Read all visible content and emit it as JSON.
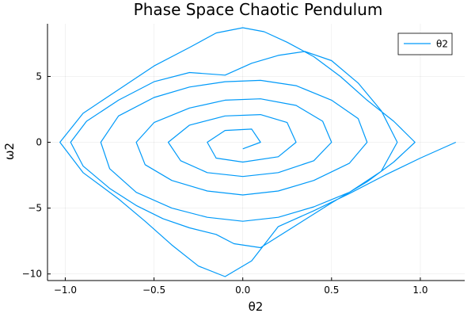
{
  "chart_data": {
    "type": "line",
    "title": "Phase Space Chaotic Pendulum",
    "xlabel": "θ2",
    "ylabel": "ω2",
    "xlim": [
      -1.1,
      1.25
    ],
    "ylim": [
      -10.5,
      9.0
    ],
    "xticks": [
      -1.0,
      -0.5,
      0.0,
      0.5,
      1.0
    ],
    "xtick_labels": [
      "−1.0",
      "−0.5",
      "0.0",
      "0.5",
      "1.0"
    ],
    "yticks": [
      -10,
      -5,
      0,
      5
    ],
    "ytick_labels": [
      "−10",
      "−5",
      "0",
      "5"
    ],
    "grid": true,
    "legend_position": "top-right",
    "series": [
      {
        "name": "θ2",
        "color": "#009af9",
        "x": [
          1.2,
          1.0,
          0.8,
          0.6,
          0.4,
          0.2,
          0.05,
          -0.1,
          -0.25,
          -0.4,
          -0.55,
          -0.7,
          -0.9,
          -1.03,
          -0.9,
          -0.7,
          -0.5,
          -0.3,
          -0.15,
          0.0,
          0.12,
          0.25,
          0.4,
          0.55,
          0.7,
          0.85,
          0.97,
          0.85,
          0.7,
          0.5,
          0.3,
          0.1,
          -0.05,
          -0.15,
          -0.3,
          -0.45,
          -0.6,
          -0.75,
          -0.9,
          -0.97,
          -0.88,
          -0.7,
          -0.5,
          -0.3,
          -0.1,
          0.05,
          0.2,
          0.35,
          0.5,
          0.65,
          0.78,
          0.87,
          0.78,
          0.6,
          0.4,
          0.2,
          0.0,
          -0.2,
          -0.4,
          -0.6,
          -0.75,
          -0.8,
          -0.7,
          -0.5,
          -0.3,
          -0.1,
          0.1,
          0.3,
          0.5,
          0.65,
          0.7,
          0.6,
          0.4,
          0.2,
          0.0,
          -0.2,
          -0.4,
          -0.55,
          -0.6,
          -0.5,
          -0.3,
          -0.1,
          0.1,
          0.3,
          0.45,
          0.5,
          0.4,
          0.2,
          0.0,
          -0.2,
          -0.35,
          -0.42,
          -0.3,
          -0.1,
          0.1,
          0.25,
          0.3,
          0.2,
          0.0,
          -0.15,
          -0.2,
          -0.1,
          0.05,
          0.1,
          0.0
        ],
        "y": [
          0.0,
          -1.2,
          -2.5,
          -3.9,
          -5.2,
          -6.4,
          -9.0,
          -10.2,
          -9.4,
          -7.8,
          -6.0,
          -4.3,
          -2.3,
          0.0,
          2.2,
          4.0,
          5.8,
          7.2,
          8.3,
          8.7,
          8.4,
          7.6,
          6.5,
          5.0,
          3.2,
          1.6,
          0.0,
          -1.5,
          -3.0,
          -4.6,
          -6.3,
          -8.0,
          -7.7,
          -7.0,
          -6.5,
          -5.8,
          -4.8,
          -3.5,
          -1.8,
          0.0,
          1.6,
          3.2,
          4.6,
          5.3,
          5.1,
          6.0,
          6.6,
          6.9,
          6.2,
          4.5,
          2.4,
          0.0,
          -2.2,
          -3.8,
          -4.9,
          -5.7,
          -6.0,
          -5.7,
          -5.0,
          -3.8,
          -2.0,
          0.0,
          2.0,
          3.4,
          4.2,
          4.6,
          4.7,
          4.3,
          3.2,
          1.8,
          0.0,
          -1.6,
          -2.9,
          -3.7,
          -4.0,
          -3.7,
          -2.9,
          -1.7,
          0.0,
          1.5,
          2.6,
          3.2,
          3.3,
          2.8,
          1.6,
          0.0,
          -1.4,
          -2.3,
          -2.6,
          -2.3,
          -1.4,
          0.0,
          1.3,
          2.0,
          2.1,
          1.5,
          0.0,
          -1.1,
          -1.5,
          -1.2,
          0.0,
          0.9,
          1.0,
          0.0,
          -0.5
        ]
      }
    ]
  }
}
